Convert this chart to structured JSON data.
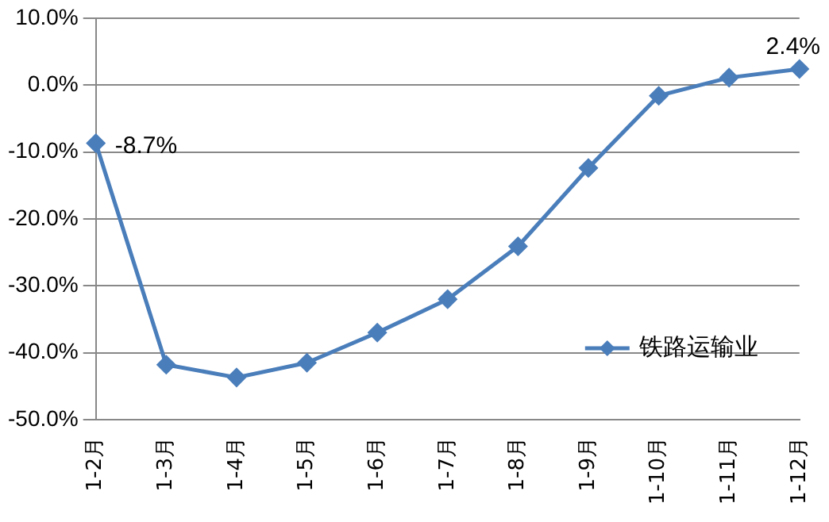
{
  "chart_data": {
    "type": "line",
    "categories": [
      "1-2月",
      "1-3月",
      "1-4月",
      "1-5月",
      "1-6月",
      "1-7月",
      "1-8月",
      "1-9月",
      "1-10月",
      "1-11月",
      "1-12月"
    ],
    "series": [
      {
        "name": "铁路运输业",
        "color": "#4a7ebb",
        "values": [
          -8.7,
          -41.8,
          -43.7,
          -41.5,
          -37,
          -32,
          -24.1,
          -12.4,
          -1.6,
          1.1,
          2.4
        ]
      }
    ],
    "ylim": [
      -50,
      10
    ],
    "yticks": [
      {
        "value": -50,
        "label": "-50.0%"
      },
      {
        "value": -40,
        "label": "-40.0%"
      },
      {
        "value": -30,
        "label": "-30.0%"
      },
      {
        "value": -20,
        "label": "-20.0%"
      },
      {
        "value": -10,
        "label": "-10.0%"
      },
      {
        "value": 0,
        "label": "0.0%"
      },
      {
        "value": 10,
        "label": "10.0%"
      }
    ],
    "grid": "y",
    "legend": "bottom right",
    "marker": "diamond",
    "line_style": "solid",
    "annotations": [
      {
        "text": "-8.7%",
        "x": "1-2月",
        "y": -8.7
      },
      {
        "text": "2.4%",
        "x": "1-12月",
        "y": 2.4
      }
    ]
  }
}
